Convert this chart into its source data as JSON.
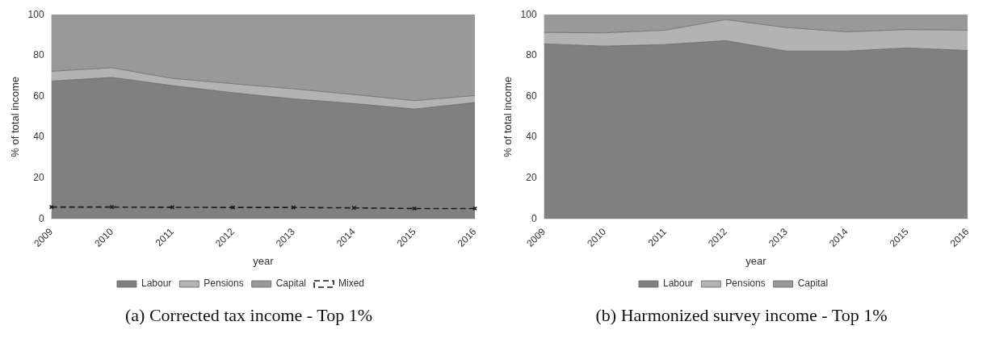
{
  "chart_data": [
    {
      "type": "area",
      "stacked": true,
      "categories": [
        "2009",
        "2010",
        "2011",
        "2012",
        "2013",
        "2014",
        "2015",
        "2016"
      ],
      "xlabel": "year",
      "ylabel": "% of total income",
      "ylim": [
        0,
        100
      ],
      "yticks": [
        0,
        20,
        40,
        60,
        80,
        100
      ],
      "legend": "bottom",
      "annotations": [
        "(a) Corrected tax income - Top 1%"
      ],
      "series": [
        {
          "name": "Labour",
          "color": "#808080",
          "values": [
            67.5,
            69.3,
            65.3,
            61.8,
            58.8,
            56.5,
            53.8,
            57.0
          ]
        },
        {
          "name": "Pensions",
          "color": "#b3b3b3",
          "values": [
            4.8,
            4.7,
            3.5,
            4.4,
            4.9,
            4.4,
            4.1,
            3.4
          ]
        },
        {
          "name": "Capital",
          "color": "#999999",
          "values": [
            27.7,
            26.0,
            31.2,
            33.8,
            36.3,
            39.1,
            42.1,
            39.6
          ]
        },
        {
          "name": "Mixed",
          "type": "line",
          "color": "#1a1a1a",
          "marker": "cross",
          "line_style": "dashed",
          "values": [
            5.8,
            5.8,
            5.7,
            5.6,
            5.6,
            5.4,
            5.1,
            5.1
          ]
        }
      ]
    },
    {
      "type": "area",
      "stacked": true,
      "categories": [
        "2009",
        "2010",
        "2011",
        "2012",
        "2013",
        "2014",
        "2015",
        "2016"
      ],
      "xlabel": "year",
      "ylabel": "% of total income",
      "ylim": [
        0,
        100
      ],
      "yticks": [
        0,
        20,
        40,
        60,
        80,
        100
      ],
      "legend": "bottom",
      "annotations": [
        "(b) Harmonized survey income - Top 1%"
      ],
      "series": [
        {
          "name": "Labour",
          "color": "#808080",
          "values": [
            85.7,
            84.6,
            85.4,
            87.3,
            82.2,
            82.2,
            83.7,
            82.5
          ]
        },
        {
          "name": "Pensions",
          "color": "#b3b3b3",
          "values": [
            5.6,
            6.5,
            7.0,
            10.3,
            11.5,
            9.4,
            9.0,
            9.9
          ]
        },
        {
          "name": "Capital",
          "color": "#999999",
          "values": [
            8.7,
            8.9,
            7.6,
            2.4,
            6.3,
            8.4,
            7.3,
            7.6
          ]
        }
      ]
    }
  ]
}
